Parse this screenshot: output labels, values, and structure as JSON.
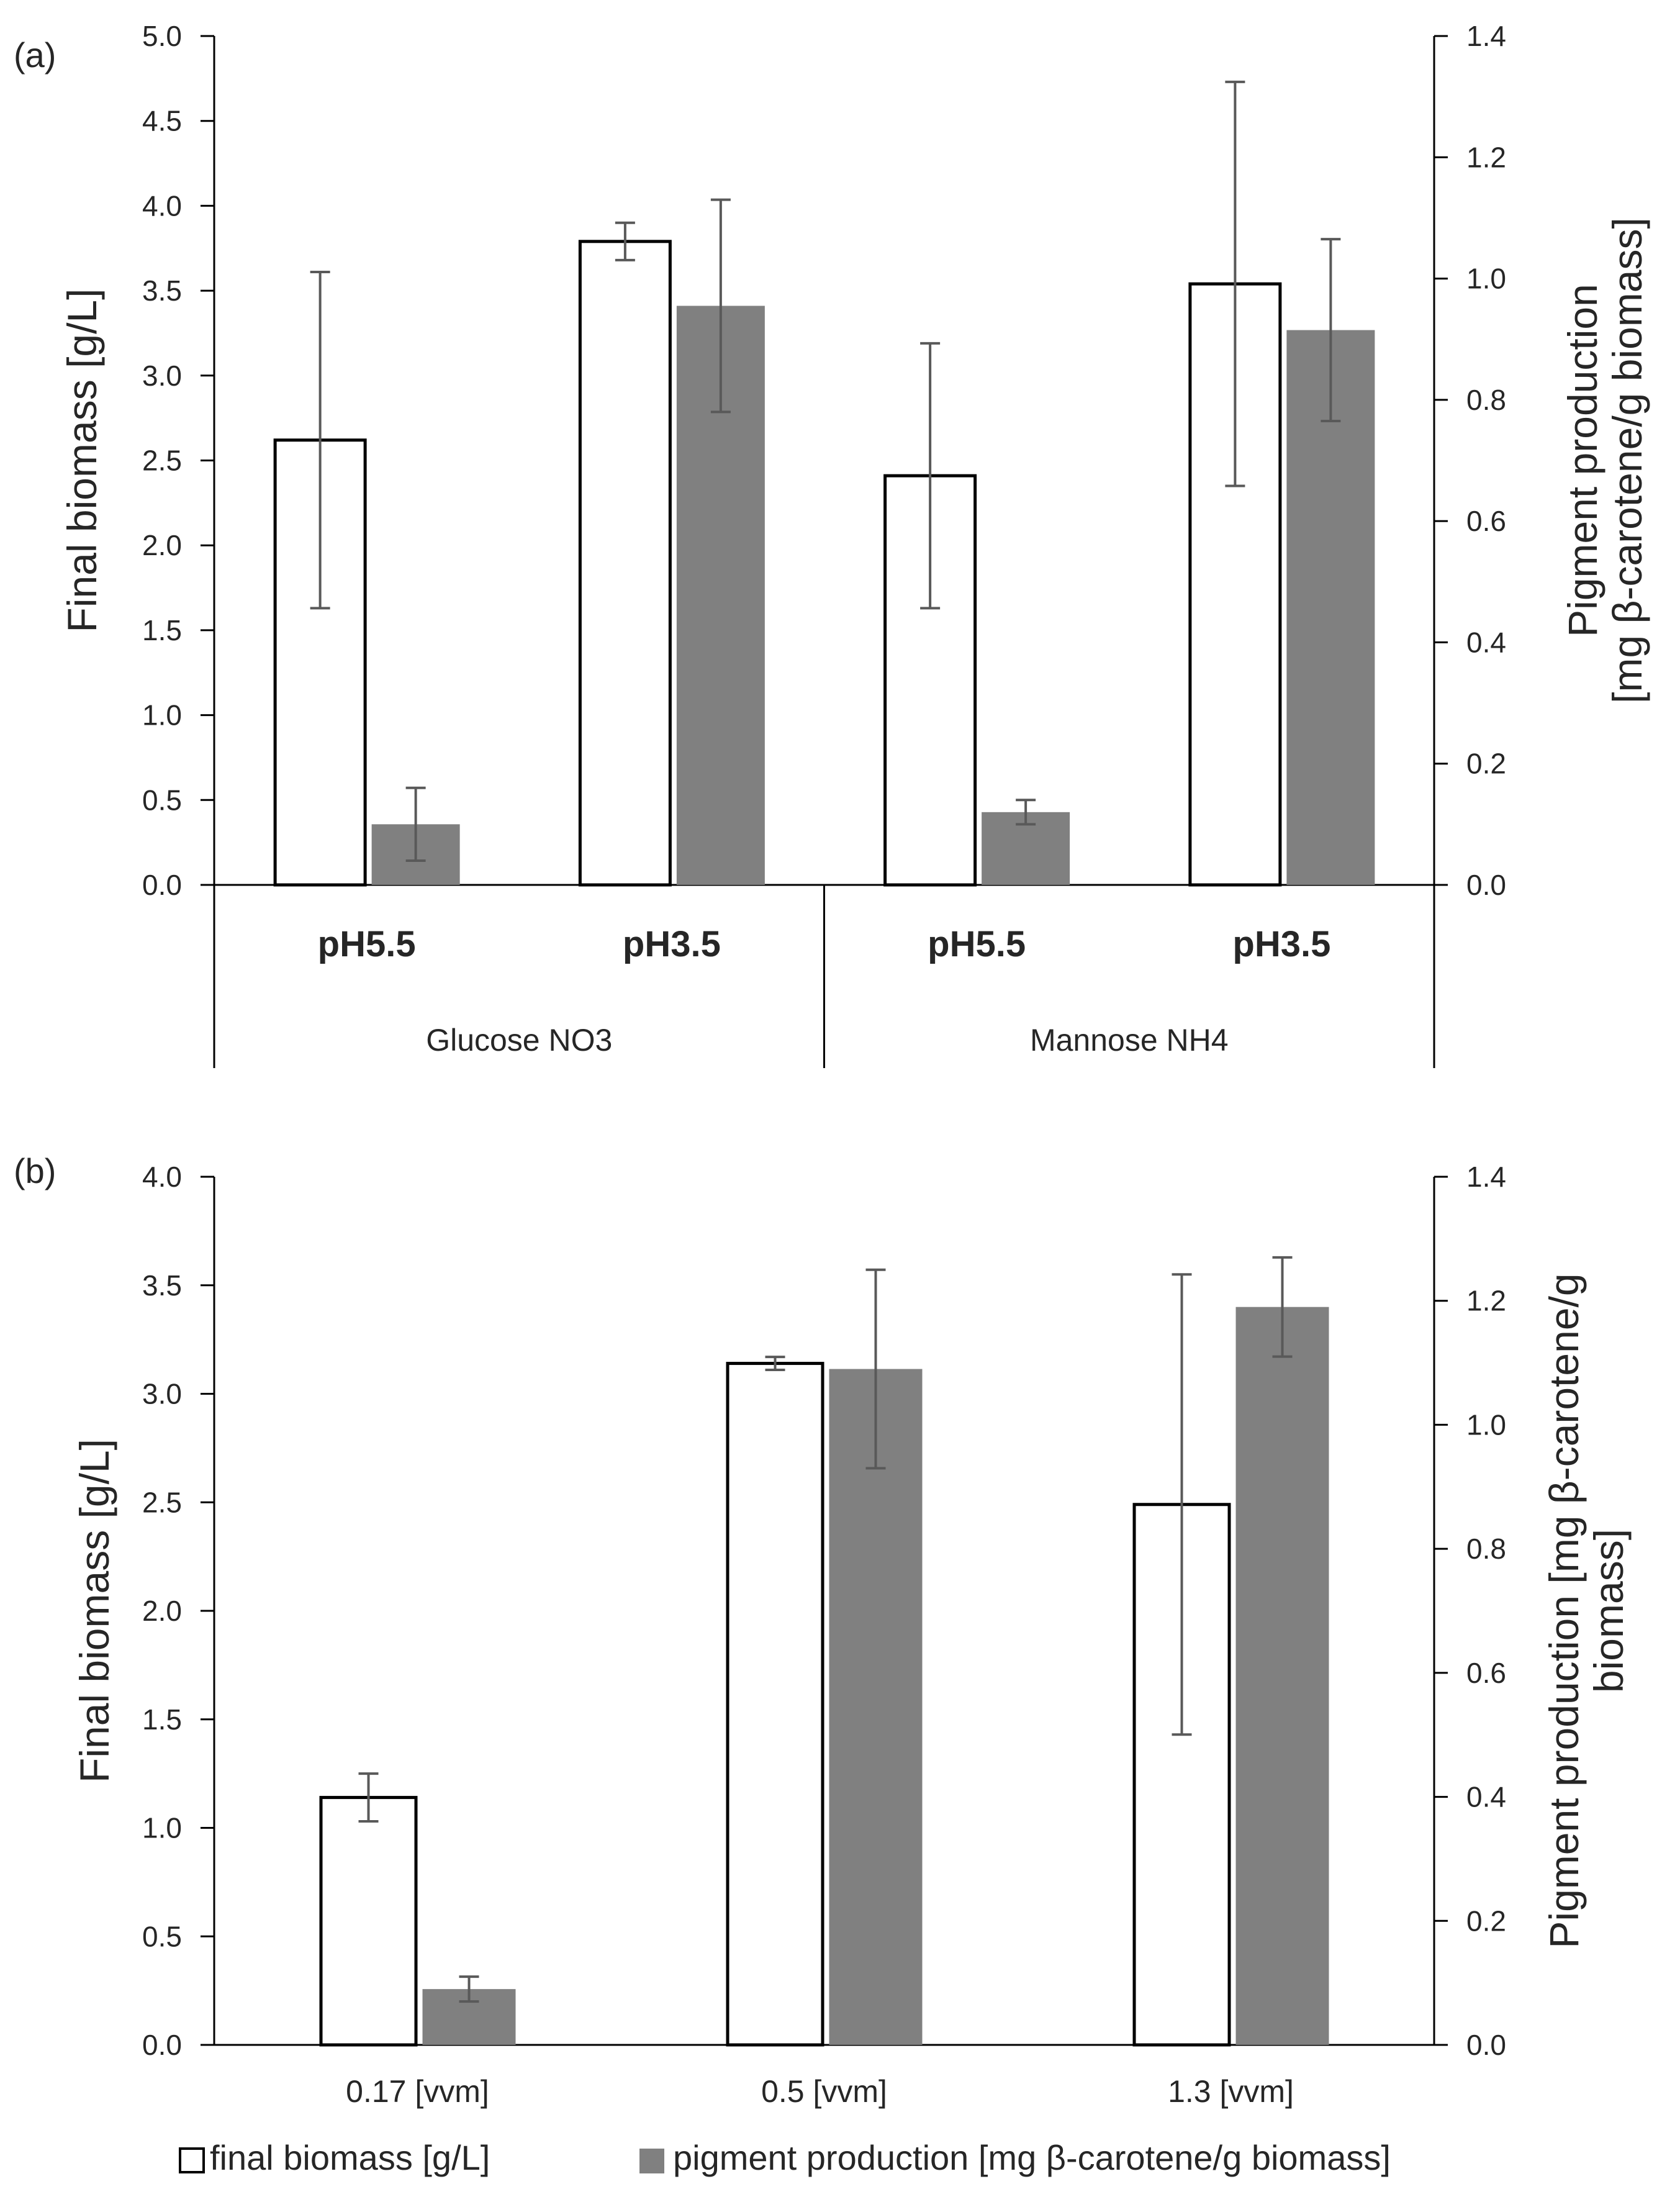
{
  "legend": {
    "biomass_label": "final biomass [g/L]",
    "pigment_label": "pigment production [mg β-carotene/g biomass]"
  },
  "colors": {
    "biomass_fill": "#ffffff",
    "biomass_stroke": "#000000",
    "pigment_fill": "#808080",
    "error_bar": "#595959",
    "axis": "#000000"
  },
  "chart_data": [
    {
      "panel": "(a)",
      "type": "bar",
      "groups": [
        "Glucose NO3",
        "Mannose NH4"
      ],
      "categories": [
        "pH5.5",
        "pH3.5",
        "pH5.5",
        "pH3.5"
      ],
      "category_group": [
        0,
        0,
        1,
        1
      ],
      "series": [
        {
          "name": "final biomass [g/L]",
          "axis": "left",
          "values": [
            2.62,
            3.79,
            2.41,
            3.54
          ],
          "errors": [
            0.99,
            0.11,
            0.78,
            1.19
          ]
        },
        {
          "name": "pigment production [mg β-carotene/g biomass]",
          "axis": "right",
          "values": [
            0.1,
            0.955,
            0.12,
            0.915
          ],
          "errors": [
            0.06,
            0.175,
            0.02,
            0.15
          ]
        }
      ],
      "ylabel": "Final biomass [g/L]",
      "ylabel_right_lines": [
        "Pigment production",
        "[mg β-carotene/g biomass]"
      ],
      "ylim": [
        0,
        5.0
      ],
      "yticks": [
        0,
        0.5,
        1.0,
        1.5,
        2.0,
        2.5,
        3.0,
        3.5,
        4.0,
        4.5,
        5.0
      ],
      "ylim_right": [
        0,
        1.4
      ],
      "yticks_right": [
        0,
        0.2,
        0.4,
        0.6,
        0.8,
        1.0,
        1.2,
        1.4
      ]
    },
    {
      "panel": "(b)",
      "type": "bar",
      "categories": [
        "0.17 [vvm]",
        "0.5 [vvm]",
        "1.3 [vvm]"
      ],
      "series": [
        {
          "name": "final biomass [g/L]",
          "axis": "left",
          "values": [
            1.14,
            3.14,
            2.49
          ],
          "errors": [
            0.11,
            0.03,
            1.06
          ]
        },
        {
          "name": "pigment production [mg β-carotene/g biomass]",
          "axis": "right",
          "values": [
            0.09,
            1.09,
            1.19
          ],
          "errors": [
            0.02,
            0.16,
            0.08
          ]
        }
      ],
      "ylabel": "Final biomass [g/L]",
      "ylabel_right_lines": [
        "Pigment production [mg β-carotene/g",
        "biomass]"
      ],
      "ylim": [
        0,
        4.0
      ],
      "yticks": [
        0,
        0.5,
        1.0,
        1.5,
        2.0,
        2.5,
        3.0,
        3.5,
        4.0
      ],
      "ylim_right": [
        0,
        1.4
      ],
      "yticks_right": [
        0,
        0.2,
        0.4,
        0.6,
        0.8,
        1.0,
        1.2,
        1.4
      ]
    }
  ]
}
